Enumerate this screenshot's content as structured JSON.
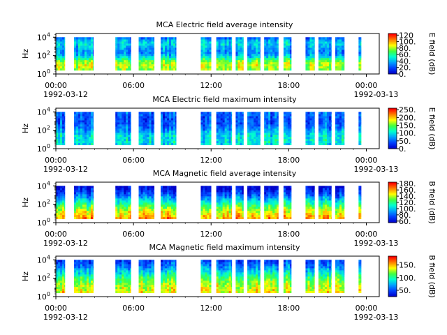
{
  "colormap": [
    "#0000c8",
    "#0040ff",
    "#00a0ff",
    "#00ffd0",
    "#40ff40",
    "#ffff00",
    "#ff8000",
    "#ff0000"
  ],
  "chart_data": [
    {
      "type": "heatmap",
      "title": "MCA  Electric field average intensity",
      "ylabel": "Hz",
      "colorbar_label": "E field (dB)",
      "colorbar_ticks": [
        "0.",
        "20.",
        "40.",
        "60.",
        "80.",
        "100.",
        "120"
      ],
      "colorbar_range": [
        0,
        125
      ],
      "ylim_log10": [
        0,
        4.4
      ],
      "ytick_labels": [
        "10^0",
        "10^2",
        "10^4"
      ],
      "xlim_hours": [
        0,
        25
      ],
      "xtick_labels": [
        "00:00",
        "06:00",
        "12:00",
        "18:00",
        "00:00"
      ],
      "date_labels": [
        "1992-03-12",
        "1992-03-13"
      ],
      "coverage_hours": [
        [
          0.0,
          0.7
        ],
        [
          1.4,
          2.9
        ],
        [
          4.6,
          5.8
        ],
        [
          6.4,
          7.6
        ],
        [
          8.1,
          9.3
        ],
        [
          11.2,
          12.0
        ],
        [
          12.4,
          13.6
        ],
        [
          13.9,
          14.5
        ],
        [
          14.8,
          15.8
        ],
        [
          16.1,
          17.2
        ],
        [
          17.6,
          18.2
        ],
        [
          19.3,
          20.0
        ],
        [
          20.3,
          21.3
        ],
        [
          21.6,
          22.3
        ],
        [
          23.4,
          23.6
        ]
      ]
    },
    {
      "type": "heatmap",
      "title": "MCA  Electric field maximum intensity",
      "ylabel": "Hz",
      "colorbar_label": "E field (dB)",
      "colorbar_ticks": [
        "0.",
        "50.",
        "100.",
        "150.",
        "200.",
        "250."
      ],
      "colorbar_range": [
        0,
        260
      ],
      "ylim_log10": [
        0,
        4.4
      ],
      "ytick_labels": [
        "10^0",
        "10^2",
        "10^4"
      ],
      "xlim_hours": [
        0,
        25
      ],
      "xtick_labels": [
        "00:00",
        "06:00",
        "12:00",
        "18:00",
        "00:00"
      ],
      "date_labels": [
        "1992-03-12",
        "1992-03-13"
      ],
      "coverage_hours": [
        [
          0.0,
          0.7
        ],
        [
          1.4,
          2.9
        ],
        [
          4.6,
          5.8
        ],
        [
          6.4,
          7.6
        ],
        [
          8.1,
          9.3
        ],
        [
          11.2,
          12.0
        ],
        [
          12.4,
          13.6
        ],
        [
          13.9,
          14.5
        ],
        [
          14.8,
          15.8
        ],
        [
          16.1,
          17.2
        ],
        [
          17.6,
          18.2
        ],
        [
          19.3,
          20.0
        ],
        [
          20.3,
          21.3
        ],
        [
          21.6,
          22.3
        ],
        [
          23.4,
          23.6
        ]
      ]
    },
    {
      "type": "heatmap",
      "title": "MCA  Magnetic field average intensity",
      "ylabel": "Hz",
      "colorbar_label": "B field (dB)",
      "colorbar_ticks": [
        "60.",
        "80.",
        "100.",
        "120.",
        "140.",
        "160.",
        "180."
      ],
      "colorbar_range": [
        55,
        185
      ],
      "ylim_log10": [
        0,
        4.4
      ],
      "ytick_labels": [
        "10^0",
        "10^2",
        "10^4"
      ],
      "xlim_hours": [
        0,
        25
      ],
      "xtick_labels": [
        "00:00",
        "06:00",
        "12:00",
        "18:00",
        "00:00"
      ],
      "date_labels": [
        "1992-03-12",
        "1992-03-13"
      ],
      "coverage_hours": [
        [
          0.0,
          0.7
        ],
        [
          1.4,
          2.9
        ],
        [
          4.6,
          5.8
        ],
        [
          6.4,
          7.6
        ],
        [
          8.1,
          9.3
        ],
        [
          11.2,
          12.0
        ],
        [
          12.4,
          13.6
        ],
        [
          13.9,
          14.5
        ],
        [
          14.8,
          15.8
        ],
        [
          16.1,
          17.2
        ],
        [
          17.6,
          18.2
        ],
        [
          19.3,
          20.0
        ],
        [
          20.3,
          21.3
        ],
        [
          21.6,
          22.3
        ],
        [
          23.4,
          23.6
        ]
      ]
    },
    {
      "type": "heatmap",
      "title": "MCA  Magnetic field maximum intensity",
      "ylabel": "Hz",
      "colorbar_label": "B field (dB)",
      "colorbar_ticks": [
        "50.",
        "100.",
        "150."
      ],
      "colorbar_range": [
        25,
        185
      ],
      "ylim_log10": [
        0,
        4.4
      ],
      "ytick_labels": [
        "10^0",
        "10^2",
        "10^4"
      ],
      "xlim_hours": [
        0,
        25
      ],
      "xtick_labels": [
        "00:00",
        "06:00",
        "12:00",
        "18:00",
        "00:00"
      ],
      "date_labels": [
        "1992-03-12",
        "1992-03-13"
      ],
      "coverage_hours": [
        [
          0.0,
          0.7
        ],
        [
          1.4,
          2.9
        ],
        [
          4.6,
          5.8
        ],
        [
          6.4,
          7.6
        ],
        [
          8.1,
          9.3
        ],
        [
          11.2,
          12.0
        ],
        [
          12.4,
          13.6
        ],
        [
          13.9,
          14.5
        ],
        [
          14.8,
          15.8
        ],
        [
          16.1,
          17.2
        ],
        [
          17.6,
          18.2
        ],
        [
          19.3,
          20.0
        ],
        [
          20.3,
          21.3
        ],
        [
          21.6,
          22.3
        ],
        [
          23.4,
          23.6
        ]
      ]
    }
  ]
}
